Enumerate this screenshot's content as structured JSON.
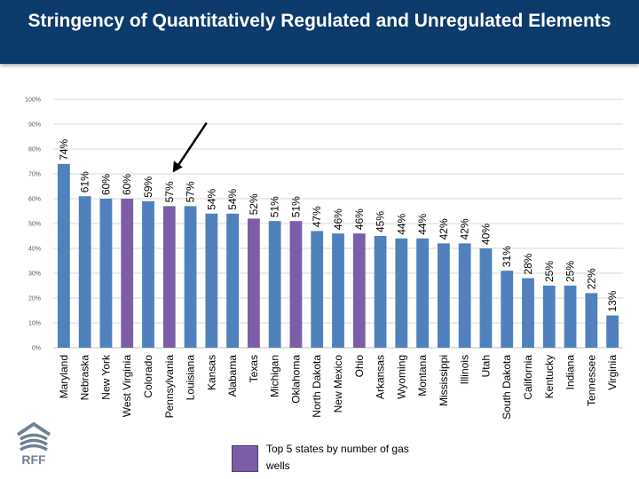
{
  "header": {
    "title": "Stringency of Quantitatively Regulated and Unregulated Elements"
  },
  "logo": {
    "text": "RFF",
    "icon": "rff-logo-icon"
  },
  "colors": {
    "header_bg": "#0c3a6b",
    "blue_bar": "#4f81bd",
    "purple_bar": "#7b5ea7",
    "arrow": "#000000"
  },
  "legend": {
    "label": "Top 5 states by number of gas wells"
  },
  "annotation": {
    "arrow_points_to": "Pennsylvania"
  },
  "chart_data": {
    "type": "bar",
    "title": "Stringency of Quantitatively Regulated and Unregulated Elements",
    "xlabel": "",
    "ylabel": "",
    "ylim": [
      0,
      100
    ],
    "yticks": [
      "0%",
      "10%",
      "20%",
      "30%",
      "40%",
      "50%",
      "60%",
      "70%",
      "80%",
      "90%",
      "100%"
    ],
    "grid": true,
    "categories": [
      "Maryland",
      "Nebraska",
      "New York",
      "West Virginia",
      "Colorado",
      "Pennsylvania",
      "Louisiana",
      "Kansas",
      "Alabama",
      "Texas",
      "Michigan",
      "Oklahoma",
      "North Dakota",
      "New Mexico",
      "Ohio",
      "Arkansas",
      "Wyoming",
      "Montana",
      "Mississippi",
      "Illinois",
      "Utah",
      "South Dakota",
      "California",
      "Kentucky",
      "Indiana",
      "Tennessee",
      "Virginia"
    ],
    "values": [
      74,
      61,
      60,
      60,
      59,
      57,
      57,
      54,
      54,
      52,
      51,
      51,
      47,
      46,
      46,
      45,
      44,
      44,
      42,
      42,
      40,
      31,
      28,
      25,
      25,
      22,
      13
    ],
    "data_labels": [
      "74%",
      "61%",
      "60%",
      "60%",
      "59%",
      "57%",
      "57%",
      "54%",
      "54%",
      "52%",
      "51%",
      "51%",
      "47%",
      "46%",
      "46%",
      "45%",
      "44%",
      "44%",
      "42%",
      "42%",
      "40%",
      "31%",
      "28%",
      "25%",
      "25%",
      "22%",
      "13%"
    ],
    "top5_gas_states": [
      "West Virginia",
      "Pennsylvania",
      "Texas",
      "Oklahoma",
      "Ohio"
    ]
  }
}
